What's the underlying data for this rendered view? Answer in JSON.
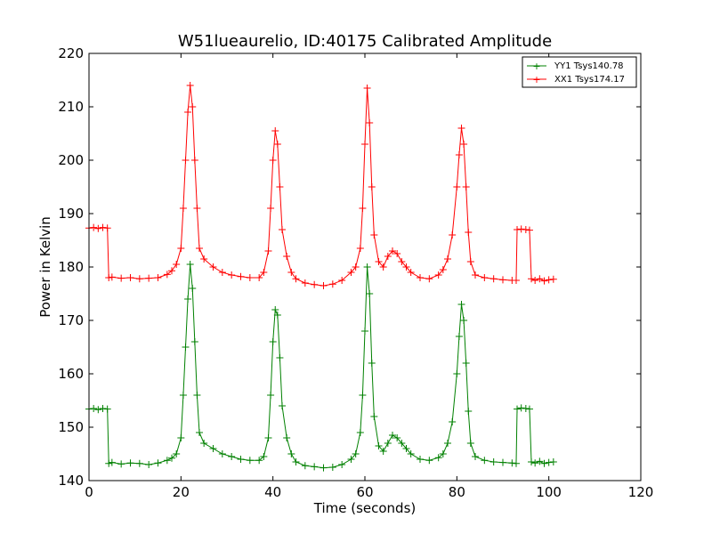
{
  "chart_data": {
    "type": "line",
    "title": "W51lueaurelio, ID:40175 Calibrated Amplitude",
    "xlabel": "Time (seconds)",
    "ylabel": "Power in Kelvin",
    "xlim": [
      0,
      120
    ],
    "ylim": [
      140,
      220
    ],
    "xticks": [
      "0",
      "20",
      "40",
      "60",
      "80",
      "100",
      "120"
    ],
    "yticks": [
      "140",
      "150",
      "160",
      "170",
      "180",
      "190",
      "200",
      "210",
      "220"
    ],
    "grid": false,
    "legend_position": "top-right",
    "series": [
      {
        "name": "YY1 Tsys140.78",
        "color": "#008000",
        "marker": "+",
        "x": [
          0,
          1,
          2,
          3,
          4,
          4.3,
          5,
          7,
          9,
          11,
          13,
          15,
          17,
          18,
          19,
          20,
          20.5,
          21,
          21.5,
          22,
          22.5,
          23,
          23.5,
          24,
          25,
          27,
          29,
          31,
          33,
          35,
          37,
          38,
          39,
          39.5,
          40,
          40.5,
          41,
          41.5,
          42,
          43,
          44,
          45,
          47,
          49,
          51,
          53,
          55,
          57,
          58,
          59,
          59.5,
          60,
          60.5,
          61,
          61.5,
          62,
          63,
          64,
          65,
          66,
          67,
          68,
          69,
          70,
          72,
          74,
          76,
          77,
          78,
          79,
          80,
          80.5,
          81,
          81.5,
          82,
          82.5,
          83,
          84,
          86,
          88,
          90,
          92,
          92.9,
          93.1,
          94,
          95,
          95.8,
          96.2,
          97,
          98,
          99,
          100,
          101
        ],
        "y": [
          153.4,
          153.5,
          153.3,
          153.5,
          153.4,
          143.2,
          143.4,
          143.1,
          143.3,
          143.2,
          143.0,
          143.3,
          143.8,
          144.2,
          145.0,
          148.0,
          156.0,
          165.0,
          174.0,
          180.5,
          176.0,
          166.0,
          156.0,
          149.0,
          147.0,
          146.0,
          145.0,
          144.5,
          144.0,
          143.8,
          143.8,
          144.5,
          148.0,
          156.0,
          166.0,
          172.0,
          171.0,
          163.0,
          154.0,
          148.0,
          145.0,
          143.5,
          142.8,
          142.6,
          142.4,
          142.5,
          143.0,
          144.0,
          145.0,
          149.0,
          156.0,
          168.0,
          180.0,
          175.0,
          162.0,
          152.0,
          146.5,
          145.5,
          147.0,
          148.5,
          148.0,
          147.0,
          146.0,
          145.0,
          144.0,
          143.8,
          144.3,
          145.0,
          147.0,
          151.0,
          160.0,
          167.0,
          173.0,
          170.0,
          162.0,
          153.0,
          147.0,
          144.5,
          143.8,
          143.5,
          143.4,
          143.3,
          143.2,
          153.4,
          153.6,
          153.5,
          153.4,
          143.5,
          143.3,
          143.6,
          143.2,
          143.4,
          143.5
        ]
      },
      {
        "name": "XX1 Tsys174.17",
        "color": "#ff0000",
        "marker": "+",
        "x": [
          0,
          1,
          2,
          3,
          4,
          4.3,
          5,
          7,
          9,
          11,
          13,
          15,
          17,
          18,
          19,
          20,
          20.5,
          21,
          21.5,
          22,
          22.5,
          23,
          23.5,
          24,
          25,
          27,
          29,
          31,
          33,
          35,
          37,
          38,
          39,
          39.5,
          40,
          40.5,
          41,
          41.5,
          42,
          43,
          44,
          45,
          47,
          49,
          51,
          53,
          55,
          57,
          58,
          59,
          59.5,
          60,
          60.5,
          61,
          61.5,
          62,
          63,
          64,
          65,
          66,
          67,
          68,
          69,
          70,
          72,
          74,
          76,
          77,
          78,
          79,
          80,
          80.5,
          81,
          81.5,
          82,
          82.5,
          83,
          84,
          86,
          88,
          90,
          92,
          92.9,
          93.1,
          94,
          95,
          95.8,
          96.2,
          97,
          98,
          99,
          100,
          101
        ],
        "y": [
          187.3,
          187.4,
          187.2,
          187.4,
          187.3,
          178.0,
          178.1,
          177.9,
          178.0,
          177.8,
          177.9,
          178.0,
          178.6,
          179.3,
          180.5,
          183.5,
          191.0,
          200.0,
          209.0,
          214.0,
          210.0,
          200.0,
          191.0,
          183.5,
          181.5,
          180.0,
          179.0,
          178.5,
          178.2,
          178.0,
          178.0,
          179.0,
          183.0,
          191.0,
          200.0,
          205.5,
          203.0,
          195.0,
          187.0,
          182.0,
          179.0,
          177.8,
          177.0,
          176.7,
          176.5,
          176.8,
          177.5,
          179.0,
          180.0,
          183.5,
          191.0,
          203.0,
          213.5,
          207.0,
          195.0,
          186.0,
          181.0,
          180.0,
          182.0,
          183.0,
          182.5,
          181.0,
          180.0,
          179.0,
          178.0,
          177.8,
          178.5,
          179.5,
          181.5,
          186.0,
          195.0,
          201.0,
          206.0,
          203.0,
          195.0,
          186.5,
          181.0,
          178.5,
          178.0,
          177.8,
          177.6,
          177.5,
          177.5,
          187.0,
          187.1,
          187.0,
          186.9,
          177.8,
          177.5,
          177.8,
          177.4,
          177.6,
          177.7
        ]
      }
    ]
  }
}
